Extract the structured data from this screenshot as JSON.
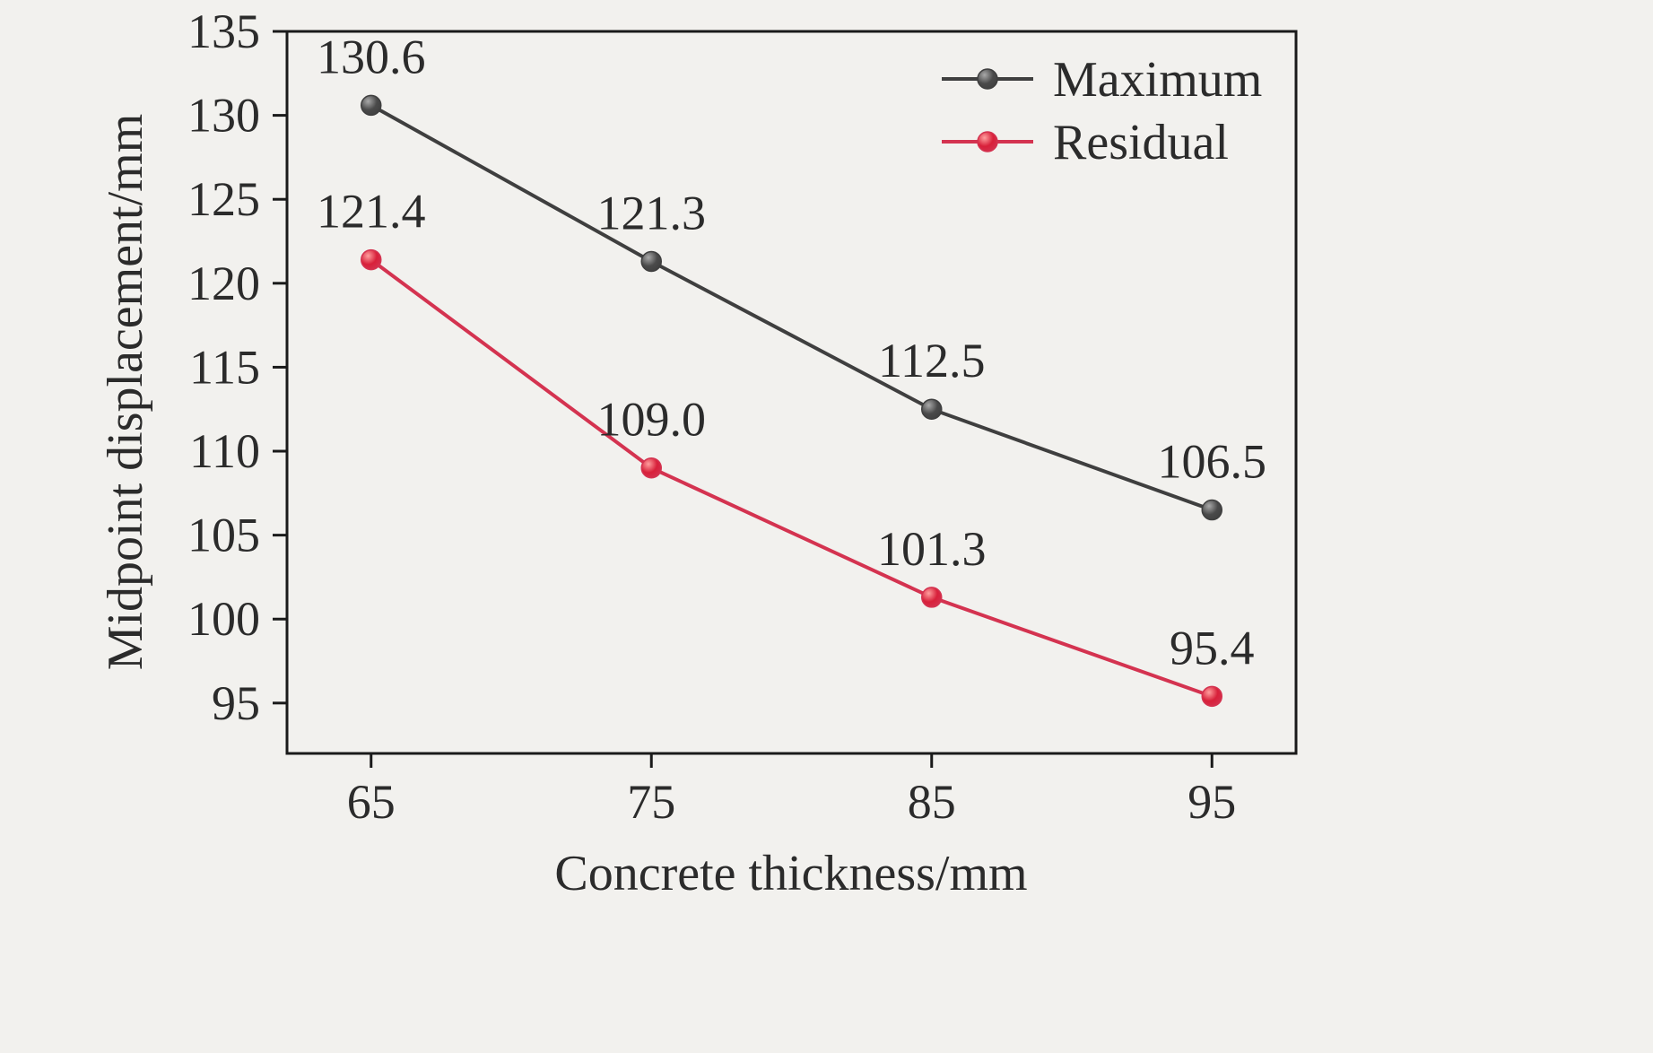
{
  "figure": {
    "background": "#f2f1ee",
    "text_color": "#2b2b2b",
    "border_color": "#1a1a1a"
  },
  "chart_data": {
    "type": "line",
    "title": "",
    "xlabel": "Concrete thickness/mm",
    "ylabel": "Midpoint displacement/mm",
    "x": [
      65,
      75,
      85,
      95
    ],
    "xticks": [
      65,
      75,
      85,
      95
    ],
    "yticks": [
      95,
      100,
      105,
      110,
      115,
      120,
      125,
      130,
      135
    ],
    "xlim": [
      62,
      98
    ],
    "ylim": [
      92,
      135
    ],
    "grid": false,
    "legend_position": "top-right",
    "value_label_decimals": 1,
    "series": [
      {
        "name": "Maximum",
        "values": [
          130.6,
          121.3,
          112.5,
          106.5
        ],
        "line_color": "#3f3f3f",
        "marker_fill": "#4a4a4a",
        "marker_highlight": "#a9a9a9"
      },
      {
        "name": "Residual",
        "values": [
          121.4,
          109.0,
          101.3,
          95.4
        ],
        "line_color": "#d43350",
        "marker_fill": "#d8203a",
        "marker_highlight": "#ff9e9e"
      }
    ]
  }
}
